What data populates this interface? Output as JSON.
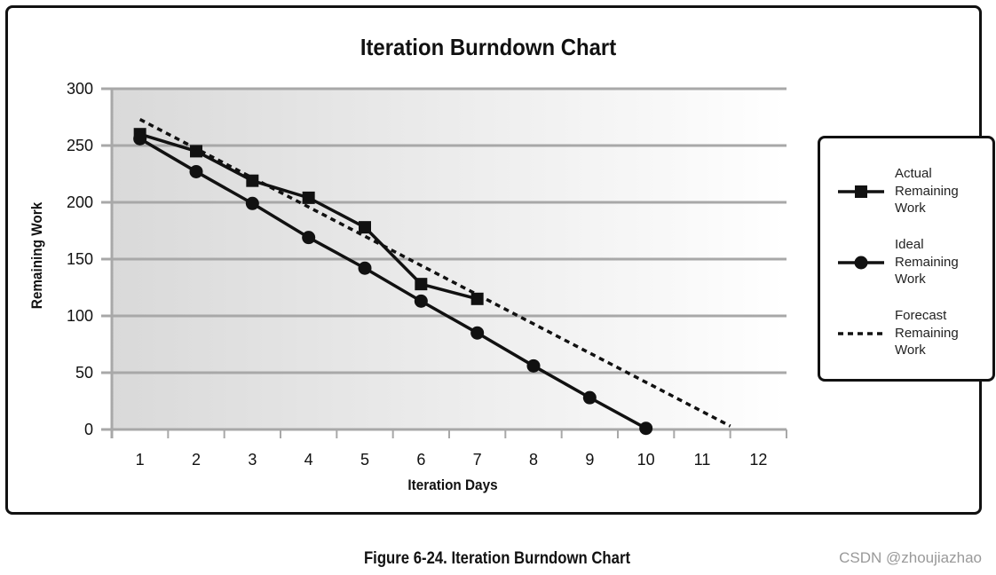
{
  "chart_data": {
    "type": "line",
    "title": "Iteration Burndown Chart",
    "xlabel": "Iteration Days",
    "ylabel": "Remaining Work",
    "x": [
      1,
      2,
      3,
      4,
      5,
      6,
      7,
      8,
      9,
      10,
      11,
      12
    ],
    "xlim": [
      0.5,
      12.5
    ],
    "ylim": [
      0,
      300
    ],
    "yticks": [
      0,
      50,
      100,
      150,
      200,
      250,
      300
    ],
    "grid": "horizontal",
    "legend_position": "right",
    "series": [
      {
        "name": "Actual Remaining Work",
        "marker": "square",
        "line": "solid",
        "x": [
          1,
          2,
          3,
          4,
          5,
          6,
          7
        ],
        "y": [
          260,
          245,
          219,
          204,
          178,
          128,
          115
        ]
      },
      {
        "name": "Ideal Remaining Work",
        "marker": "circle",
        "line": "solid",
        "x": [
          1,
          2,
          3,
          4,
          5,
          6,
          7,
          8,
          9,
          10
        ],
        "y": [
          256,
          227,
          199,
          169,
          142,
          113,
          85,
          56,
          28,
          1
        ]
      },
      {
        "name": "Forecast Remaining Work",
        "marker": "none",
        "line": "dashed",
        "x": [
          1,
          11.5
        ],
        "y": [
          273,
          3
        ]
      }
    ]
  },
  "legend": {
    "items": [
      {
        "lines": [
          "Actual",
          "Remaining",
          "Work"
        ]
      },
      {
        "lines": [
          "Ideal",
          "Remaining",
          "Work"
        ]
      },
      {
        "lines": [
          "Forecast",
          "Remaining",
          "Work"
        ]
      }
    ]
  },
  "caption": "Figure 6-24. Iteration Burndown Chart",
  "watermark": "CSDN @zhoujiazhao"
}
